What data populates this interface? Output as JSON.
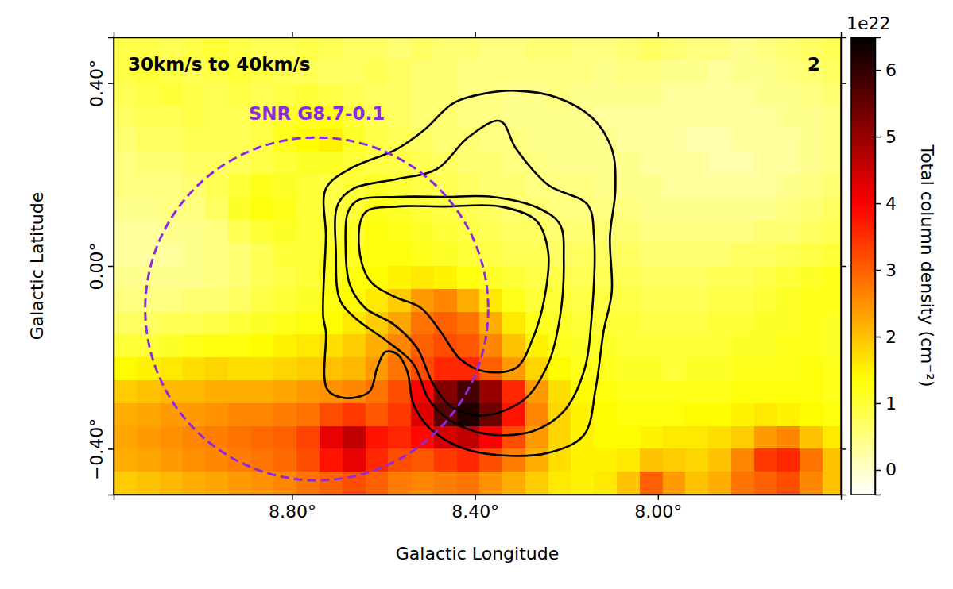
{
  "chart_data": {
    "type": "heatmap",
    "title": "30km/s to 40km/s",
    "panel": "2",
    "x_label": "Galactic Longitude",
    "y_label": "Galactic Latitude",
    "xlim": [
      9.19,
      7.6
    ],
    "ylim": [
      -0.5,
      0.5
    ],
    "xticks": [
      {
        "value": 8.8,
        "label": "8.80°"
      },
      {
        "value": 8.4,
        "label": "8.40°"
      },
      {
        "value": 8.0,
        "label": "8.00°"
      }
    ],
    "yticks": [
      {
        "value": -0.4,
        "label": "−0.40°"
      },
      {
        "value": 0.0,
        "label": "0.00°"
      },
      {
        "value": 0.4,
        "label": "0.40°"
      }
    ],
    "x": [
      9.165,
      9.115,
      9.065,
      9.015,
      8.965,
      8.915,
      8.865,
      8.815,
      8.765,
      8.715,
      8.665,
      8.615,
      8.565,
      8.515,
      8.465,
      8.415,
      8.365,
      8.315,
      8.265,
      8.215,
      8.165,
      8.115,
      8.065,
      8.015,
      7.965,
      7.915,
      7.865,
      7.815,
      7.765,
      7.715,
      7.665,
      7.615
    ],
    "y": [
      0.475,
      0.425,
      0.375,
      0.325,
      0.275,
      0.225,
      0.175,
      0.125,
      0.075,
      0.025,
      -0.025,
      -0.075,
      -0.125,
      -0.175,
      -0.225,
      -0.275,
      -0.325,
      -0.375,
      -0.425,
      -0.475
    ],
    "values": [
      [
        0.9,
        0.9,
        0.8,
        0.9,
        1.0,
        0.9,
        0.8,
        0.8,
        0.9,
        0.8,
        0.7,
        0.7,
        0.6,
        0.7,
        0.6,
        0.6,
        0.5,
        0.5,
        0.6,
        0.6,
        0.5,
        0.5,
        0.6,
        0.7,
        0.6,
        0.5,
        0.5,
        0.4,
        0.5,
        0.6,
        0.7,
        0.8
      ],
      [
        0.9,
        1.0,
        0.9,
        0.8,
        0.9,
        1.0,
        0.9,
        0.8,
        0.8,
        0.7,
        0.7,
        0.8,
        0.7,
        0.6,
        0.6,
        0.5,
        0.5,
        0.5,
        0.5,
        0.5,
        0.5,
        0.4,
        0.5,
        0.5,
        0.4,
        0.4,
        0.3,
        0.4,
        0.4,
        0.5,
        0.6,
        0.7
      ],
      [
        0.8,
        0.9,
        1.0,
        0.9,
        0.8,
        0.9,
        0.8,
        0.9,
        1.0,
        0.9,
        0.8,
        0.7,
        0.7,
        0.6,
        0.6,
        0.5,
        0.5,
        0.4,
        0.4,
        0.5,
        0.4,
        0.4,
        0.4,
        0.4,
        0.3,
        0.3,
        0.3,
        0.3,
        0.4,
        0.4,
        0.5,
        0.6
      ],
      [
        0.7,
        0.8,
        0.8,
        0.9,
        0.8,
        0.8,
        0.9,
        1.1,
        1.2,
        1.3,
        1.0,
        0.8,
        0.7,
        0.6,
        0.6,
        0.5,
        0.5,
        0.4,
        0.4,
        0.4,
        0.4,
        0.3,
        0.3,
        0.3,
        0.3,
        0.3,
        0.3,
        0.3,
        0.3,
        0.4,
        0.4,
        0.5
      ],
      [
        0.6,
        0.7,
        0.7,
        0.8,
        0.8,
        0.8,
        0.9,
        1.2,
        1.4,
        1.5,
        1.1,
        0.9,
        0.8,
        0.7,
        0.6,
        0.6,
        0.5,
        0.5,
        0.4,
        0.4,
        0.4,
        0.4,
        0.3,
        0.3,
        0.3,
        0.2,
        0.2,
        0.3,
        0.3,
        0.3,
        0.4,
        0.5
      ],
      [
        0.5,
        0.6,
        0.6,
        0.7,
        0.7,
        0.8,
        0.9,
        1.0,
        1.1,
        1.1,
        1.0,
        0.9,
        0.9,
        0.8,
        0.7,
        0.6,
        0.6,
        0.5,
        0.5,
        0.4,
        0.4,
        0.4,
        0.4,
        0.3,
        0.3,
        0.3,
        0.2,
        0.2,
        0.3,
        0.3,
        0.4,
        0.5
      ],
      [
        0.5,
        0.5,
        0.5,
        0.6,
        0.8,
        1.0,
        1.2,
        1.1,
        1.0,
        0.9,
        1.0,
        1.1,
        1.0,
        0.9,
        0.8,
        0.7,
        0.6,
        0.6,
        0.5,
        0.5,
        0.5,
        0.4,
        0.4,
        0.4,
        0.3,
        0.3,
        0.3,
        0.3,
        0.3,
        0.4,
        0.5,
        0.6
      ],
      [
        0.4,
        0.4,
        0.5,
        0.5,
        0.7,
        1.1,
        1.3,
        1.2,
        1.0,
        0.9,
        1.0,
        1.2,
        1.1,
        1.0,
        0.9,
        0.8,
        0.7,
        0.6,
        0.6,
        0.5,
        0.5,
        0.5,
        0.5,
        0.4,
        0.4,
        0.4,
        0.4,
        0.4,
        0.4,
        0.5,
        0.6,
        0.7
      ],
      [
        0.3,
        0.3,
        0.4,
        0.4,
        0.5,
        0.8,
        1.0,
        1.1,
        1.0,
        1.0,
        1.1,
        1.3,
        1.2,
        1.1,
        1.0,
        0.9,
        0.8,
        0.7,
        0.7,
        0.6,
        0.6,
        0.6,
        0.6,
        0.5,
        0.5,
        0.5,
        0.5,
        0.5,
        0.6,
        0.6,
        0.7,
        0.8
      ],
      [
        0.3,
        0.3,
        0.3,
        0.4,
        0.5,
        0.6,
        0.8,
        1.0,
        1.0,
        1.1,
        1.2,
        1.3,
        1.3,
        1.2,
        1.1,
        1.0,
        0.9,
        0.8,
        0.8,
        0.7,
        0.7,
        0.7,
        0.7,
        0.6,
        0.6,
        0.6,
        0.6,
        0.7,
        0.7,
        0.8,
        0.9,
        1.0
      ],
      [
        0.4,
        0.4,
        0.4,
        0.4,
        0.5,
        0.6,
        0.8,
        0.9,
        1.0,
        1.2,
        1.3,
        1.4,
        1.5,
        1.6,
        1.5,
        1.3,
        1.1,
        1.0,
        0.9,
        0.9,
        0.8,
        0.8,
        0.8,
        0.7,
        0.7,
        0.7,
        0.8,
        0.8,
        0.9,
        1.0,
        1.1,
        1.2
      ],
      [
        0.5,
        0.5,
        0.5,
        0.6,
        0.6,
        0.7,
        0.9,
        1.0,
        1.1,
        1.3,
        1.4,
        1.6,
        1.9,
        2.4,
        2.6,
        2.2,
        1.6,
        1.2,
        1.0,
        1.0,
        0.9,
        0.9,
        0.9,
        0.8,
        0.8,
        0.8,
        0.9,
        0.9,
        1.0,
        1.1,
        1.2,
        1.2
      ],
      [
        0.7,
        0.7,
        0.8,
        0.8,
        0.9,
        1.0,
        1.1,
        1.2,
        1.3,
        1.4,
        1.6,
        1.9,
        2.3,
        2.8,
        3.0,
        2.8,
        2.2,
        1.6,
        1.2,
        1.1,
        1.0,
        1.0,
        1.0,
        0.9,
        0.9,
        0.9,
        1.0,
        1.0,
        1.1,
        1.1,
        1.2,
        1.1
      ],
      [
        1.0,
        1.0,
        1.1,
        1.2,
        1.3,
        1.3,
        1.4,
        1.5,
        1.6,
        1.7,
        1.9,
        2.2,
        2.6,
        3.0,
        3.2,
        3.1,
        2.6,
        2.0,
        1.5,
        1.2,
        1.1,
        1.1,
        1.0,
        1.0,
        1.0,
        1.0,
        1.0,
        1.1,
        1.1,
        1.2,
        1.2,
        1.1
      ],
      [
        1.4,
        1.5,
        1.6,
        1.7,
        1.8,
        1.7,
        1.7,
        1.8,
        1.9,
        2.0,
        2.1,
        2.4,
        2.8,
        3.2,
        3.6,
        3.6,
        3.0,
        2.4,
        1.8,
        1.4,
        1.2,
        1.2,
        1.1,
        1.1,
        1.0,
        1.1,
        1.1,
        1.2,
        1.2,
        1.2,
        1.3,
        1.2
      ],
      [
        1.9,
        2.0,
        2.1,
        2.1,
        2.2,
        2.2,
        2.2,
        2.3,
        2.4,
        2.5,
        2.6,
        2.8,
        3.2,
        4.0,
        5.2,
        5.8,
        5.0,
        3.6,
        2.4,
        1.7,
        1.4,
        1.3,
        1.2,
        1.2,
        1.2,
        1.2,
        1.2,
        1.3,
        1.3,
        1.3,
        1.3,
        1.2
      ],
      [
        2.2,
        2.3,
        2.4,
        2.4,
        2.5,
        2.6,
        2.6,
        2.7,
        2.8,
        3.2,
        3.4,
        3.1,
        3.4,
        4.3,
        5.6,
        6.2,
        5.4,
        3.8,
        2.6,
        1.8,
        1.5,
        1.4,
        1.3,
        1.3,
        1.3,
        1.4,
        1.4,
        1.5,
        1.6,
        1.5,
        1.4,
        1.3
      ],
      [
        2.3,
        2.4,
        2.5,
        2.6,
        2.7,
        2.8,
        2.9,
        3.0,
        3.3,
        4.2,
        4.6,
        3.8,
        3.6,
        3.9,
        4.4,
        4.6,
        4.0,
        3.2,
        2.4,
        1.8,
        1.5,
        1.4,
        1.4,
        1.5,
        1.6,
        1.6,
        1.7,
        1.9,
        2.4,
        2.6,
        2.0,
        1.6
      ],
      [
        2.2,
        2.3,
        2.4,
        2.5,
        2.6,
        2.7,
        2.8,
        2.9,
        3.2,
        3.8,
        4.2,
        3.6,
        3.2,
        3.1,
        3.4,
        3.6,
        3.2,
        2.7,
        2.2,
        1.7,
        1.5,
        1.5,
        1.6,
        2.0,
        1.9,
        1.8,
        2.0,
        2.6,
        3.4,
        3.6,
        2.8,
        2.0
      ],
      [
        1.9,
        2.0,
        2.1,
        2.2,
        2.3,
        2.4,
        2.5,
        2.6,
        2.8,
        3.0,
        3.2,
        3.0,
        2.7,
        2.6,
        2.7,
        2.8,
        2.5,
        2.2,
        1.9,
        1.6,
        1.5,
        1.6,
        2.0,
        3.0,
        2.4,
        2.0,
        2.2,
        2.8,
        3.0,
        3.2,
        2.6,
        2.0
      ]
    ],
    "colorbar": {
      "label": "Total column density (cm⁻²)",
      "offset_label": "1e22",
      "range": [
        -0.37,
        6.49
      ],
      "ticks": [
        0,
        1,
        2,
        3,
        4,
        5,
        6
      ]
    },
    "circle": {
      "label": "SNR G8.7-0.1",
      "x": 8.746,
      "y": -0.094,
      "radius": 0.375,
      "color": "#8a2be2",
      "line_style": "dashed"
    },
    "contours": [
      {
        "x": [
          8.31,
          8.223,
          8.145,
          8.101,
          8.093,
          8.105,
          8.101,
          8.119,
          8.136,
          8.162,
          8.24,
          8.345,
          8.431,
          8.501,
          8.535,
          8.548,
          8.57,
          8.596,
          8.614,
          8.631,
          8.683,
          8.723,
          8.726,
          8.732,
          8.726,
          8.726,
          8.674,
          8.57,
          8.509,
          8.449,
          8.379
        ],
        "y": [
          0.383,
          0.369,
          0.325,
          0.256,
          0.169,
          0.064,
          -0.057,
          -0.144,
          -0.266,
          -0.37,
          -0.409,
          -0.414,
          -0.397,
          -0.353,
          -0.301,
          -0.231,
          -0.193,
          -0.188,
          -0.223,
          -0.275,
          -0.289,
          -0.27,
          -0.144,
          -0.11,
          0.064,
          0.169,
          0.212,
          0.256,
          0.299,
          0.355,
          0.377
        ]
      },
      {
        "x": [
          8.345,
          8.31,
          8.24,
          8.154,
          8.14,
          8.145,
          8.162,
          8.206,
          8.275,
          8.379,
          8.457,
          8.501,
          8.535,
          8.596,
          8.657,
          8.695,
          8.704,
          8.7,
          8.666,
          8.57,
          8.483,
          8.414
        ],
        "y": [
          0.317,
          0.256,
          0.177,
          0.134,
          0.064,
          -0.11,
          -0.231,
          -0.318,
          -0.362,
          -0.367,
          -0.336,
          -0.292,
          -0.214,
          -0.162,
          -0.118,
          -0.075,
          0.03,
          0.134,
          0.169,
          0.19,
          0.212,
          0.282
        ]
      },
      {
        "x": [
          8.657,
          8.57,
          8.466,
          8.362,
          8.258,
          8.214,
          8.206,
          8.214,
          8.24,
          8.292,
          8.379,
          8.449,
          8.492,
          8.527,
          8.579,
          8.64,
          8.674,
          8.683,
          8.678
        ],
        "y": [
          0.143,
          0.151,
          0.151,
          0.151,
          0.125,
          0.09,
          0.012,
          -0.11,
          -0.214,
          -0.292,
          -0.327,
          -0.31,
          -0.257,
          -0.179,
          -0.127,
          -0.092,
          -0.04,
          0.047,
          0.117
        ]
      },
      {
        "x": [
          8.64,
          8.57,
          8.466,
          8.345,
          8.266,
          8.24,
          8.249,
          8.275,
          8.31,
          8.379,
          8.431,
          8.475,
          8.518,
          8.579,
          8.631,
          8.654
        ],
        "y": [
          0.117,
          0.13,
          0.13,
          0.13,
          0.099,
          0.03,
          -0.075,
          -0.162,
          -0.223,
          -0.231,
          -0.205,
          -0.144,
          -0.092,
          -0.066,
          -0.031,
          0.047
        ]
      }
    ],
    "color": "#000000"
  }
}
